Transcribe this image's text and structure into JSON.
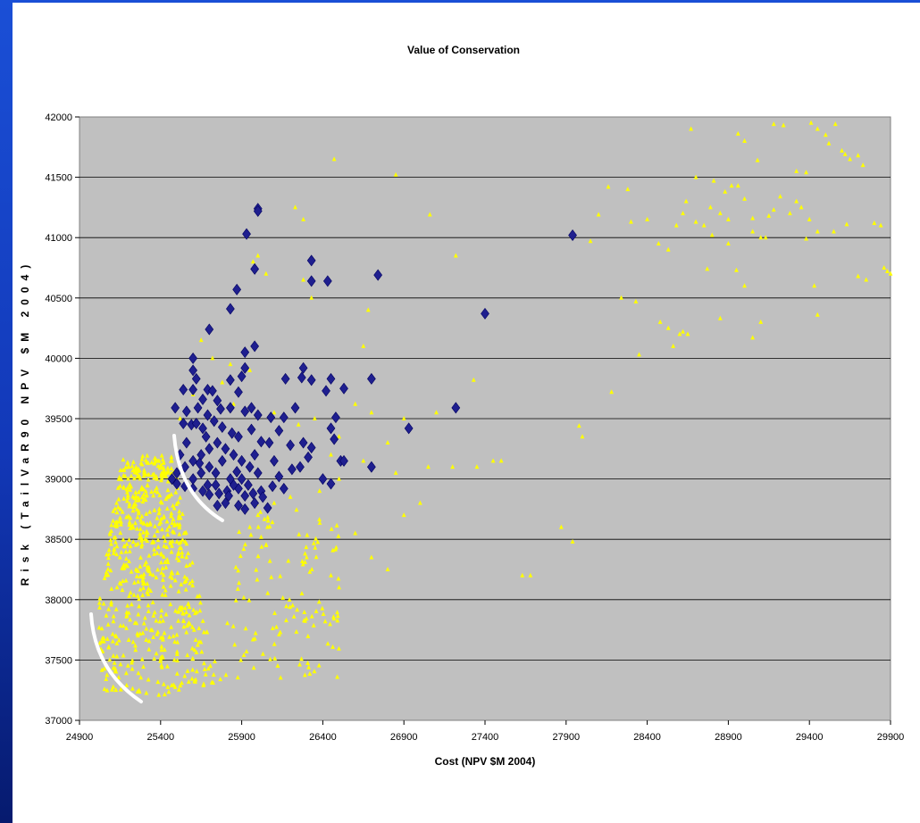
{
  "chart_data": {
    "type": "scatter",
    "title": "Value of Conservation",
    "xlabel": "Cost (NPV $M 2004)",
    "ylabel": "Risk (TailVaR90 NPV $M 2004)",
    "xlim": [
      24900,
      29900
    ],
    "ylim": [
      37000,
      42000
    ],
    "x_ticks": [
      "24900",
      "25400",
      "25900",
      "26400",
      "26900",
      "27400",
      "27900",
      "28400",
      "28900",
      "29400",
      "29900"
    ],
    "y_ticks": [
      "37000",
      "37500",
      "38000",
      "38500",
      "39000",
      "39500",
      "40000",
      "40500",
      "41000",
      "41500",
      "42000"
    ],
    "grid": "horizontal",
    "plot_background": "#c0c0c0",
    "legend": "none",
    "series": [
      {
        "marker": "triangle",
        "color": "#ffff00",
        "points": [
          [
            25650,
            40150
          ],
          [
            25720,
            40000
          ],
          [
            25830,
            39950
          ],
          [
            25950,
            39900
          ],
          [
            25780,
            39800
          ],
          [
            25600,
            39700
          ],
          [
            25500,
            39600
          ],
          [
            25850,
            39620
          ],
          [
            25520,
            39500
          ],
          [
            25950,
            39420
          ],
          [
            26100,
            39550
          ],
          [
            26250,
            39450
          ],
          [
            26350,
            39500
          ],
          [
            26450,
            39200
          ],
          [
            26500,
            39350
          ],
          [
            26600,
            39620
          ],
          [
            26700,
            39550
          ],
          [
            26800,
            39300
          ],
          [
            26900,
            39500
          ],
          [
            26850,
            39050
          ],
          [
            26650,
            39150
          ],
          [
            26500,
            39000
          ],
          [
            26380,
            38900
          ],
          [
            26200,
            38850
          ],
          [
            26100,
            38800
          ],
          [
            26000,
            38700
          ],
          [
            25950,
            38600
          ],
          [
            26050,
            38450
          ],
          [
            26300,
            38350
          ],
          [
            26450,
            38200
          ],
          [
            26500,
            38100
          ],
          [
            26600,
            38550
          ],
          [
            26700,
            38350
          ],
          [
            26800,
            38250
          ],
          [
            26900,
            38700
          ],
          [
            27000,
            38800
          ],
          [
            27050,
            39100
          ],
          [
            27100,
            39550
          ],
          [
            27200,
            39100
          ],
          [
            27350,
            39100
          ],
          [
            27450,
            39150
          ],
          [
            27500,
            39150
          ],
          [
            27630,
            38200
          ],
          [
            27680,
            38200
          ],
          [
            27870,
            38600
          ],
          [
            27940,
            38480
          ],
          [
            27980,
            39440
          ],
          [
            28000,
            39350
          ],
          [
            27060,
            41190
          ],
          [
            26850,
            41520
          ],
          [
            26470,
            41650
          ],
          [
            26230,
            41250
          ],
          [
            26280,
            41150
          ],
          [
            26000,
            40850
          ],
          [
            25970,
            40800
          ],
          [
            26050,
            40700
          ],
          [
            26280,
            40650
          ],
          [
            26330,
            40500
          ],
          [
            26680,
            40400
          ],
          [
            26650,
            40100
          ],
          [
            27220,
            40850
          ],
          [
            27330,
            39820
          ],
          [
            28180,
            39720
          ],
          [
            28350,
            40030
          ],
          [
            28240,
            40500
          ],
          [
            28330,
            40470
          ],
          [
            28480,
            40300
          ],
          [
            28530,
            40250
          ],
          [
            28600,
            40200
          ],
          [
            28050,
            40970
          ],
          [
            28100,
            41190
          ],
          [
            28160,
            41420
          ],
          [
            28280,
            41400
          ],
          [
            28300,
            41130
          ],
          [
            28400,
            41150
          ],
          [
            28470,
            40950
          ],
          [
            28530,
            40900
          ],
          [
            28580,
            41100
          ],
          [
            28620,
            41200
          ],
          [
            28640,
            41300
          ],
          [
            28700,
            41130
          ],
          [
            28750,
            41100
          ],
          [
            28790,
            41250
          ],
          [
            28850,
            41200
          ],
          [
            28900,
            40950
          ],
          [
            28920,
            41430
          ],
          [
            28960,
            41430
          ],
          [
            29000,
            41320
          ],
          [
            29050,
            41050
          ],
          [
            29100,
            41000
          ],
          [
            29130,
            41000
          ],
          [
            29150,
            41180
          ],
          [
            29180,
            41230
          ],
          [
            29220,
            41340
          ],
          [
            29280,
            41200
          ],
          [
            29320,
            41300
          ],
          [
            29350,
            41250
          ],
          [
            29400,
            41150
          ],
          [
            29450,
            41050
          ],
          [
            28670,
            41900
          ],
          [
            28700,
            41500
          ],
          [
            28810,
            41470
          ],
          [
            28880,
            41380
          ],
          [
            28960,
            41860
          ],
          [
            29000,
            41800
          ],
          [
            29080,
            41640
          ],
          [
            29180,
            41940
          ],
          [
            29240,
            41930
          ],
          [
            29320,
            41550
          ],
          [
            29380,
            41540
          ],
          [
            29410,
            41950
          ],
          [
            29450,
            41900
          ],
          [
            29500,
            41850
          ],
          [
            29520,
            41780
          ],
          [
            29560,
            41940
          ],
          [
            29600,
            41720
          ],
          [
            29620,
            41690
          ],
          [
            29650,
            41650
          ],
          [
            29700,
            41680
          ],
          [
            29730,
            41600
          ],
          [
            29800,
            41120
          ],
          [
            29840,
            41100
          ],
          [
            29860,
            40750
          ],
          [
            29880,
            40720
          ],
          [
            29900,
            40700
          ],
          [
            29750,
            40650
          ],
          [
            29700,
            40680
          ],
          [
            29630,
            41110
          ],
          [
            29550,
            41050
          ],
          [
            29450,
            40360
          ],
          [
            29430,
            40600
          ],
          [
            29380,
            40990
          ],
          [
            29100,
            40300
          ],
          [
            29050,
            40170
          ],
          [
            29000,
            40600
          ],
          [
            28950,
            40730
          ],
          [
            28850,
            40330
          ],
          [
            28770,
            40740
          ],
          [
            28650,
            40200
          ],
          [
            28620,
            40220
          ],
          [
            28560,
            40100
          ],
          [
            28800,
            41020
          ],
          [
            28900,
            41150
          ],
          [
            29050,
            41160
          ]
        ],
        "note_dense_cluster": "Dense cluster of yellow triangles roughly x 25000–25800, y 37200–39200"
      },
      {
        "marker": "diamond",
        "color": "#1f1f8f",
        "points": [
          [
            26000,
            41240
          ],
          [
            26000,
            41220
          ],
          [
            25930,
            41030
          ],
          [
            25980,
            40740
          ],
          [
            26330,
            40810
          ],
          [
            26330,
            40640
          ],
          [
            26740,
            40690
          ],
          [
            25870,
            40570
          ],
          [
            26430,
            40640
          ],
          [
            25830,
            40410
          ],
          [
            25700,
            40240
          ],
          [
            25920,
            40050
          ],
          [
            25980,
            40100
          ],
          [
            26280,
            39920
          ],
          [
            26330,
            39820
          ],
          [
            25600,
            40000
          ],
          [
            25600,
            39900
          ],
          [
            25620,
            39830
          ],
          [
            25830,
            39820
          ],
          [
            25920,
            39920
          ],
          [
            25900,
            39850
          ],
          [
            26170,
            39830
          ],
          [
            26270,
            39840
          ],
          [
            26420,
            39730
          ],
          [
            26450,
            39830
          ],
          [
            26530,
            39750
          ],
          [
            26700,
            39830
          ],
          [
            25690,
            39740
          ],
          [
            25660,
            39660
          ],
          [
            25540,
            39740
          ],
          [
            25600,
            39740
          ],
          [
            25720,
            39730
          ],
          [
            25880,
            39720
          ],
          [
            25750,
            39650
          ],
          [
            25830,
            39590
          ],
          [
            25960,
            39590
          ],
          [
            25770,
            39580
          ],
          [
            25630,
            39590
          ],
          [
            25490,
            39590
          ],
          [
            25560,
            39560
          ],
          [
            25690,
            39530
          ],
          [
            25920,
            39560
          ],
          [
            26000,
            39530
          ],
          [
            26080,
            39510
          ],
          [
            26160,
            39510
          ],
          [
            26230,
            39590
          ],
          [
            26480,
            39510
          ],
          [
            26450,
            39420
          ],
          [
            27220,
            39590
          ],
          [
            26930,
            39420
          ],
          [
            27400,
            40370
          ],
          [
            27940,
            41020
          ],
          [
            25540,
            39460
          ],
          [
            25590,
            39450
          ],
          [
            25620,
            39460
          ],
          [
            25660,
            39420
          ],
          [
            25730,
            39480
          ],
          [
            25780,
            39430
          ],
          [
            25840,
            39380
          ],
          [
            25880,
            39350
          ],
          [
            25960,
            39410
          ],
          [
            26020,
            39310
          ],
          [
            26070,
            39300
          ],
          [
            26130,
            39400
          ],
          [
            26200,
            39280
          ],
          [
            26280,
            39300
          ],
          [
            26330,
            39260
          ],
          [
            26470,
            39330
          ],
          [
            26510,
            39150
          ],
          [
            26310,
            39180
          ],
          [
            26260,
            39100
          ],
          [
            26210,
            39080
          ],
          [
            26130,
            39020
          ],
          [
            26090,
            38940
          ],
          [
            26020,
            38900
          ],
          [
            25970,
            38880
          ],
          [
            25920,
            38860
          ],
          [
            25880,
            38920
          ],
          [
            25810,
            38900
          ],
          [
            25760,
            38880
          ],
          [
            25700,
            38870
          ],
          [
            25660,
            38900
          ],
          [
            25600,
            38920
          ],
          [
            25550,
            38940
          ],
          [
            25500,
            38960
          ],
          [
            25470,
            39000
          ],
          [
            25500,
            39050
          ],
          [
            25550,
            39100
          ],
          [
            25600,
            39150
          ],
          [
            25650,
            39200
          ],
          [
            25700,
            39250
          ],
          [
            25750,
            39300
          ],
          [
            25800,
            39250
          ],
          [
            25850,
            39200
          ],
          [
            25900,
            39150
          ],
          [
            25950,
            39100
          ],
          [
            26000,
            39050
          ],
          [
            25900,
            39000
          ],
          [
            25850,
            38950
          ],
          [
            25800,
            38800
          ],
          [
            25880,
            38780
          ],
          [
            25920,
            38750
          ],
          [
            25980,
            38800
          ],
          [
            26030,
            38850
          ],
          [
            25750,
            38780
          ],
          [
            25820,
            38860
          ],
          [
            25940,
            38950
          ],
          [
            25870,
            39060
          ],
          [
            25780,
            39150
          ],
          [
            25700,
            39100
          ],
          [
            25650,
            39050
          ],
          [
            25600,
            39000
          ],
          [
            25520,
            39200
          ],
          [
            25560,
            39300
          ],
          [
            25680,
            39350
          ],
          [
            25740,
            39050
          ],
          [
            25830,
            39000
          ],
          [
            26100,
            39150
          ],
          [
            26400,
            39000
          ],
          [
            26700,
            39100
          ],
          [
            26450,
            38960
          ],
          [
            26060,
            38760
          ],
          [
            26160,
            38920
          ],
          [
            25690,
            38950
          ],
          [
            25980,
            39200
          ],
          [
            25740,
            38950
          ],
          [
            25640,
            39130
          ],
          [
            26530,
            39150
          ]
        ]
      }
    ],
    "annotations": [
      "white-frontier-arc-lower-left",
      "white-frontier-arc-middle"
    ]
  }
}
